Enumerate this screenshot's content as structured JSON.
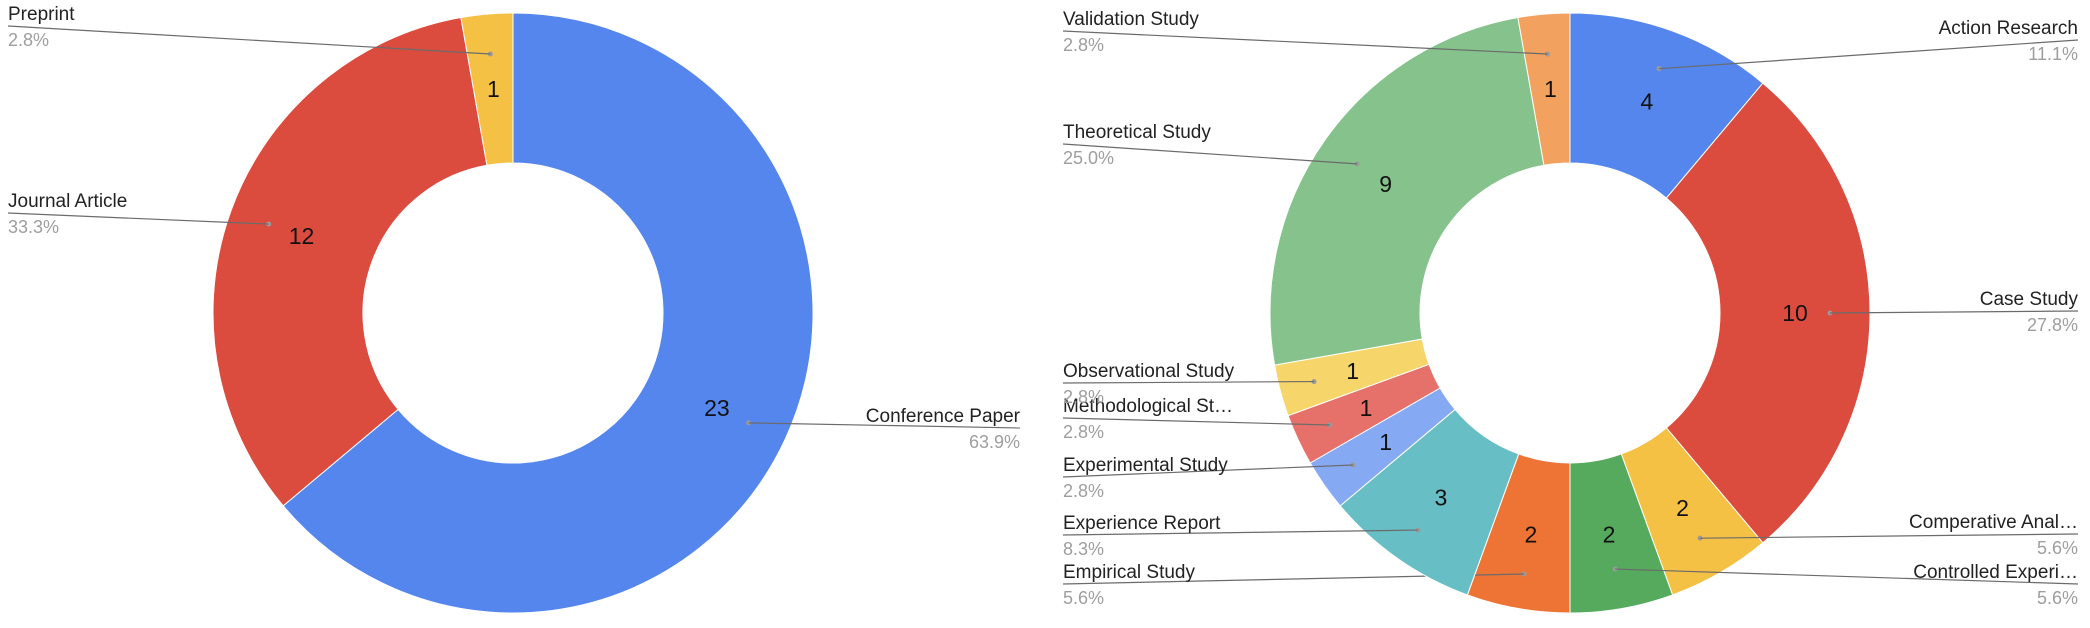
{
  "chart_data": [
    {
      "type": "pie",
      "donut": true,
      "total": 36,
      "slices": [
        {
          "label": "Conference Paper",
          "value": 23,
          "percent_label": "63.9%",
          "color": "#5586EE"
        },
        {
          "label": "Journal Article",
          "value": 12,
          "percent_label": "33.3%",
          "color": "#DB4C3F"
        },
        {
          "label": "Preprint",
          "value": 1,
          "percent_label": "2.8%",
          "color": "#F4C145"
        }
      ]
    },
    {
      "type": "pie",
      "donut": true,
      "total": 36,
      "slices": [
        {
          "label": "Action Research",
          "value": 4,
          "percent_label": "11.1%",
          "color": "#5586EE"
        },
        {
          "label": "Case Study",
          "value": 10,
          "percent_label": "27.8%",
          "color": "#DB4C3F"
        },
        {
          "label": "Comperative Anal…",
          "value": 2,
          "percent_label": "5.6%",
          "color": "#F4C145"
        },
        {
          "label": "Controlled Experi…",
          "value": 2,
          "percent_label": "5.6%",
          "color": "#55AA5E"
        },
        {
          "label": "Empirical Study",
          "value": 2,
          "percent_label": "5.6%",
          "color": "#EE7436"
        },
        {
          "label": "Experience Report",
          "value": 3,
          "percent_label": "8.3%",
          "color": "#67BFC5"
        },
        {
          "label": "Experimental Study",
          "value": 1,
          "percent_label": "2.8%",
          "color": "#86A9F4"
        },
        {
          "label": "Methodological St…",
          "value": 1,
          "percent_label": "2.8%",
          "color": "#E5716A"
        },
        {
          "label": "Observational Study",
          "value": 1,
          "percent_label": "2.8%",
          "color": "#F6D66A"
        },
        {
          "label": "Theoretical Study",
          "value": 9,
          "percent_label": "25.0%",
          "color": "#86C38C"
        },
        {
          "label": "Validation Study",
          "value": 1,
          "percent_label": "2.8%",
          "color": "#F2A15F"
        }
      ]
    }
  ]
}
